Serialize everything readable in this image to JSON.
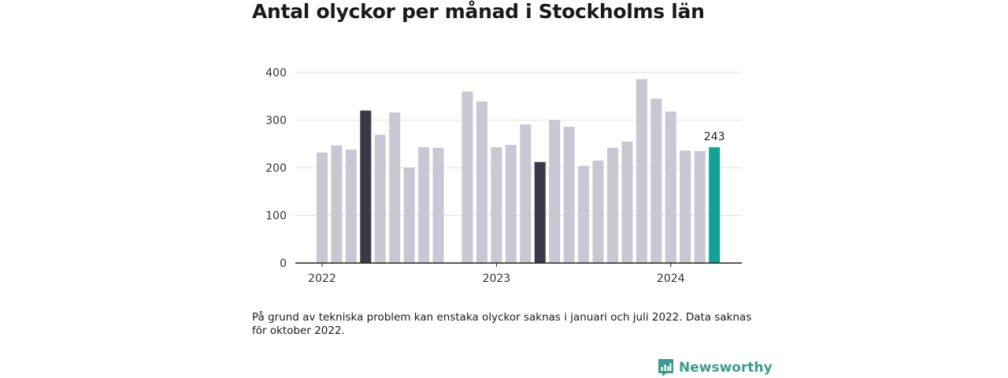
{
  "title": "Antal olyckor per månad i Stockholms län",
  "note": "På grund av tekniska problem kan enstaka olyckor saknas i januari och juli 2022. Data saknas för oktober 2022.",
  "logo": {
    "text": "Newsworthy",
    "icon": "bar-chart-logo-icon",
    "color": "#3a9c8c"
  },
  "chart_data": {
    "type": "bar",
    "title": "",
    "xlabel": "",
    "ylabel": "",
    "ylim": [
      0,
      400
    ],
    "yticks": [
      0,
      100,
      200,
      300,
      400
    ],
    "xtick_labels": [
      {
        "label": "2022",
        "at": "2022-01"
      },
      {
        "label": "2023",
        "at": "2023-01"
      },
      {
        "label": "2024",
        "at": "2024-01"
      }
    ],
    "grid": true,
    "colors": {
      "default": "#c9c7d3",
      "highlight": "#3b3947",
      "latest": "#12a296"
    },
    "highlight_label": "243",
    "bars": [
      {
        "month": "2022-01",
        "value": 232,
        "style": "default"
      },
      {
        "month": "2022-02",
        "value": 247,
        "style": "default"
      },
      {
        "month": "2022-03",
        "value": 238,
        "style": "default"
      },
      {
        "month": "2022-04",
        "value": 320,
        "style": "highlight"
      },
      {
        "month": "2022-05",
        "value": 269,
        "style": "default"
      },
      {
        "month": "2022-06",
        "value": 316,
        "style": "default"
      },
      {
        "month": "2022-07",
        "value": 200,
        "style": "default"
      },
      {
        "month": "2022-08",
        "value": 243,
        "style": "default"
      },
      {
        "month": "2022-09",
        "value": 242,
        "style": "default"
      },
      {
        "month": "2022-10",
        "value": null,
        "style": "missing"
      },
      {
        "month": "2022-11",
        "value": 360,
        "style": "default"
      },
      {
        "month": "2022-12",
        "value": 339,
        "style": "default"
      },
      {
        "month": "2023-01",
        "value": 243,
        "style": "default"
      },
      {
        "month": "2023-02",
        "value": 248,
        "style": "default"
      },
      {
        "month": "2023-03",
        "value": 291,
        "style": "default"
      },
      {
        "month": "2023-04",
        "value": 212,
        "style": "highlight"
      },
      {
        "month": "2023-05",
        "value": 300,
        "style": "default"
      },
      {
        "month": "2023-06",
        "value": 286,
        "style": "default"
      },
      {
        "month": "2023-07",
        "value": 204,
        "style": "default"
      },
      {
        "month": "2023-08",
        "value": 215,
        "style": "default"
      },
      {
        "month": "2023-09",
        "value": 242,
        "style": "default"
      },
      {
        "month": "2023-10",
        "value": 255,
        "style": "default"
      },
      {
        "month": "2023-11",
        "value": 386,
        "style": "default"
      },
      {
        "month": "2023-12",
        "value": 345,
        "style": "default"
      },
      {
        "month": "2024-01",
        "value": 318,
        "style": "default"
      },
      {
        "month": "2024-02",
        "value": 236,
        "style": "default"
      },
      {
        "month": "2024-03",
        "value": 235,
        "style": "default"
      },
      {
        "month": "2024-04",
        "value": 243,
        "style": "latest"
      }
    ]
  }
}
